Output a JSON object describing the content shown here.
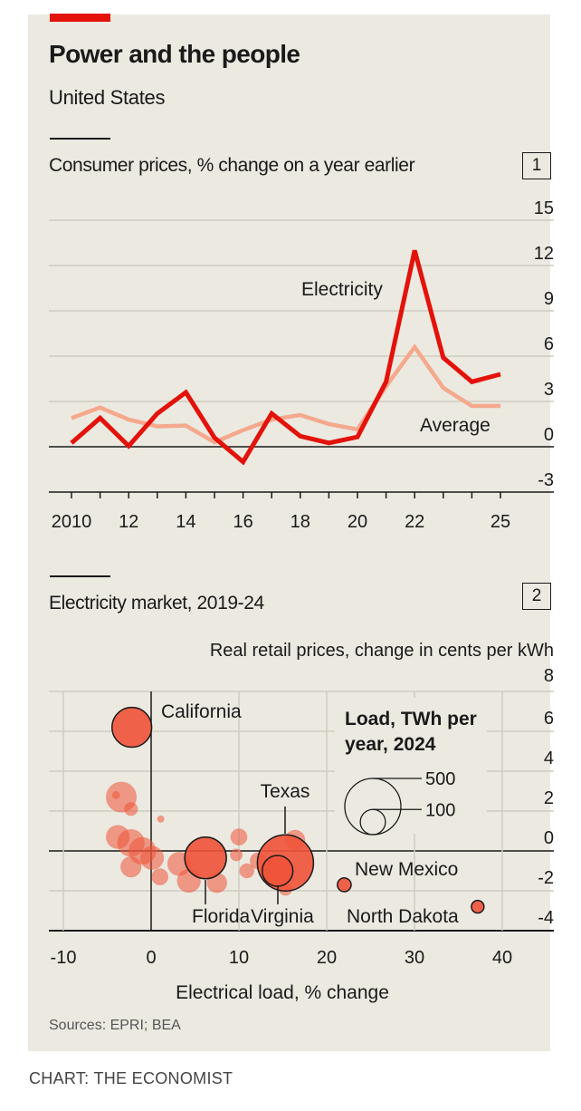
{
  "title": "Power and the people",
  "subtitle": "United States",
  "source": "Sources: EPRI; BEA",
  "credit": "CHART: THE ECONOMIST",
  "colors": {
    "background": "#ebe9e0",
    "accent": "#e3120b",
    "electricity": "#e3120b",
    "average": "#f5a88c",
    "bubble": "#ef5338"
  },
  "chart_data": [
    {
      "type": "line",
      "number": "1",
      "title": "Consumer prices, % change on a year earlier",
      "x": [
        2010,
        2011,
        2012,
        2013,
        2014,
        2015,
        2016,
        2017,
        2018,
        2019,
        2020,
        2021,
        2022,
        2023,
        2024,
        2025
      ],
      "xtick_values": [
        2010,
        2012,
        2014,
        2016,
        2018,
        2020,
        2022,
        2025
      ],
      "xtick_labels": [
        "2010",
        "12",
        "14",
        "16",
        "18",
        "20",
        "22",
        "25"
      ],
      "xlim": [
        2010,
        2025
      ],
      "ylim": [
        -3,
        15
      ],
      "yticks": [
        "15",
        "12",
        "9",
        "6",
        "3",
        "0",
        "-3"
      ],
      "grid": true,
      "series": [
        {
          "name": "Electricity",
          "values": [
            0.25,
            1.9,
            0.05,
            2.2,
            3.6,
            0.6,
            -1.0,
            2.2,
            0.7,
            0.25,
            0.65,
            4.3,
            13.0,
            5.9,
            4.3,
            4.8
          ]
        },
        {
          "name": "Average",
          "values": [
            1.9,
            2.6,
            1.8,
            1.35,
            1.4,
            0.3,
            1.1,
            1.8,
            2.1,
            1.5,
            1.15,
            4.0,
            6.6,
            3.9,
            2.7,
            2.7
          ]
        }
      ]
    },
    {
      "type": "scatter",
      "number": "2",
      "title": "Electricity market, 2019-24",
      "ylabel": "Real retail prices, change in cents per kWh",
      "xlabel": "Electrical load, % change",
      "xlim": [
        -10,
        40
      ],
      "ylim": [
        -4,
        8
      ],
      "xticks": [
        "-10",
        "0",
        "10",
        "20",
        "30",
        "40"
      ],
      "yticks": [
        "8",
        "6",
        "4",
        "2",
        "0",
        "-2",
        "-4"
      ],
      "grid": true,
      "size_legend": {
        "title_line1": "Load, TWh per",
        "title_line2": "year, 2024",
        "sizes": [
          {
            "label": "500",
            "value": 500
          },
          {
            "label": "100",
            "value": 100
          }
        ]
      },
      "points": [
        {
          "label": "",
          "x": -3.4,
          "y": 2.7,
          "load": 150
        },
        {
          "label": "",
          "x": -4.0,
          "y": 2.8,
          "load": 10
        },
        {
          "label": "",
          "x": -2.3,
          "y": 2.1,
          "load": 30
        },
        {
          "label": "",
          "x": 1.1,
          "y": 1.6,
          "load": 8
        },
        {
          "label": "",
          "x": -3.8,
          "y": 0.7,
          "load": 90
        },
        {
          "label": "",
          "x": -2.3,
          "y": 0.4,
          "load": 120
        },
        {
          "label": "",
          "x": -1.0,
          "y": 0.0,
          "load": 120
        },
        {
          "label": "",
          "x": 0.1,
          "y": -0.35,
          "load": 90
        },
        {
          "label": "",
          "x": -2.3,
          "y": -0.8,
          "load": 70
        },
        {
          "label": "",
          "x": 1.0,
          "y": -1.3,
          "load": 45
        },
        {
          "label": "",
          "x": 3.2,
          "y": -0.65,
          "load": 90
        },
        {
          "label": "",
          "x": 4.3,
          "y": -1.5,
          "load": 90
        },
        {
          "label": "",
          "x": 7.5,
          "y": -1.6,
          "load": 65
        },
        {
          "label": "",
          "x": 10.0,
          "y": 0.7,
          "load": 45
        },
        {
          "label": "",
          "x": 9.7,
          "y": -0.2,
          "load": 25
        },
        {
          "label": "",
          "x": 10.9,
          "y": -1.0,
          "load": 35
        },
        {
          "label": "",
          "x": 12.2,
          "y": -0.5,
          "load": 45
        },
        {
          "label": "",
          "x": 16.4,
          "y": 0.55,
          "load": 65
        },
        {
          "label": "",
          "x": 15.3,
          "y": -1.9,
          "load": 30
        },
        {
          "label": "California",
          "x": -2.2,
          "y": 6.2,
          "load": 250
        },
        {
          "label": "Florida",
          "x": 6.2,
          "y": -0.35,
          "load": 275
        },
        {
          "label": "Texas",
          "x": 15.3,
          "y": -0.6,
          "load": 500
        },
        {
          "label": "Virginia",
          "x": 14.4,
          "y": -1.0,
          "load": 150
        },
        {
          "label": "New Mexico",
          "x": 22.0,
          "y": -1.7,
          "load": 30
        },
        {
          "label": "North Dakota",
          "x": 37.2,
          "y": -2.8,
          "load": 25
        }
      ]
    }
  ]
}
